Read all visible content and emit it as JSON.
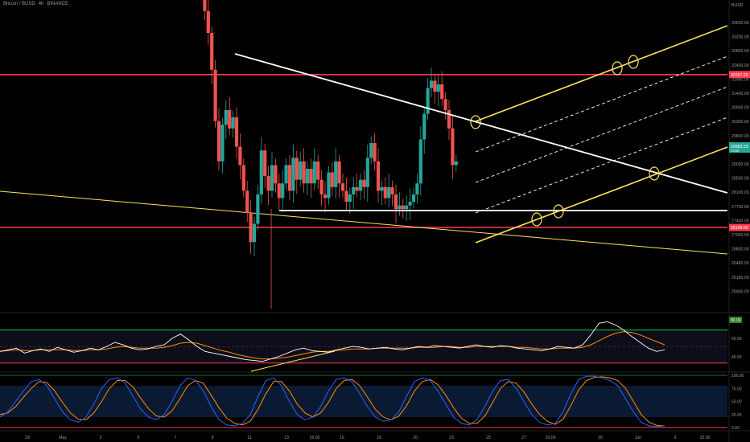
{
  "header": {
    "symbol": "Bitcoin / BUSD",
    "interval": "4h",
    "exchange": "BINANCE",
    "currency": "BUSD"
  },
  "colors": {
    "background": "#000000",
    "candle_up": "#26a69a",
    "candle_down": "#ef5350",
    "resistance": "#ff3b4e",
    "channel": "#ffe45c",
    "trendline": "#ffffff",
    "rsi_line": "#ffffff",
    "rsi_ma": "#ff8c00",
    "stoch_k": "#2962ff",
    "stoch_d": "#ff8c00"
  },
  "chart_data": [
    {
      "type": "candlestick",
      "pane": "price",
      "y_ticks": [
        "33600.00",
        "33200.00",
        "32800.00",
        "32400.00",
        "31900.00",
        "31400.00",
        "30900.00",
        "30300.00",
        "29800.00",
        "29400.00",
        "29000.00",
        "28500.00",
        "28100.00",
        "27700.00",
        "27400.00",
        "27000.00",
        "26800.00",
        "26480.00",
        "26180.00",
        "25900.00"
      ],
      "x_ticks": [
        "29",
        "May",
        "3",
        "5",
        "7",
        "9",
        "11",
        "13",
        "15:00",
        "16",
        "18",
        "20",
        "23",
        "25",
        "27",
        "15:00",
        "30",
        "Jun",
        "3",
        "15:00"
      ],
      "ylim": [
        25800,
        34300
      ],
      "price_label": "29983.23",
      "price_sublabel": "10:56",
      "horizontal_levels": [
        {
          "label": "32267.29",
          "value": 32267.29
        },
        {
          "label": "28100.00",
          "value": 28100.0
        }
      ],
      "white_support_level": 28560,
      "ohlc_path": [
        [
          0,
          34400
        ],
        [
          6,
          34000
        ],
        [
          8,
          33400
        ],
        [
          10,
          32400
        ],
        [
          12,
          31000
        ],
        [
          14,
          29900
        ],
        [
          16,
          30900
        ],
        [
          18,
          31300
        ],
        [
          20,
          30800
        ],
        [
          22,
          31100
        ],
        [
          24,
          30300
        ],
        [
          26,
          29800
        ],
        [
          28,
          29100
        ],
        [
          30,
          28500
        ],
        [
          32,
          27700
        ],
        [
          34,
          28200
        ],
        [
          36,
          29000
        ],
        [
          38,
          30200
        ],
        [
          40,
          29500
        ],
        [
          42,
          29100
        ],
        [
          44,
          29800
        ],
        [
          46,
          29300
        ],
        [
          48,
          28900
        ],
        [
          50,
          29300
        ],
        [
          52,
          29800
        ],
        [
          54,
          29100
        ],
        [
          56,
          30000
        ],
        [
          58,
          29400
        ],
        [
          60,
          29900
        ],
        [
          62,
          29300
        ],
        [
          64,
          29700
        ],
        [
          66,
          29300
        ],
        [
          68,
          29900
        ],
        [
          70,
          29400
        ],
        [
          72,
          29000
        ],
        [
          74,
          28900
        ],
        [
          76,
          29600
        ],
        [
          78,
          29200
        ],
        [
          80,
          29900
        ],
        [
          82,
          29300
        ],
        [
          84,
          29100
        ],
        [
          86,
          28800
        ],
        [
          88,
          29000
        ],
        [
          90,
          29200
        ],
        [
          92,
          29100
        ],
        [
          94,
          29400
        ],
        [
          96,
          29200
        ],
        [
          98,
          30000
        ],
        [
          100,
          30400
        ],
        [
          102,
          29900
        ],
        [
          104,
          29100
        ],
        [
          106,
          29200
        ],
        [
          108,
          28900
        ],
        [
          110,
          29200
        ],
        [
          112,
          29000
        ],
        [
          114,
          28600
        ],
        [
          116,
          28700
        ],
        [
          118,
          28600
        ],
        [
          120,
          28700
        ],
        [
          122,
          28800
        ],
        [
          124,
          29000
        ],
        [
          126,
          29300
        ],
        [
          128,
          30500
        ],
        [
          130,
          31200
        ],
        [
          132,
          31900
        ],
        [
          134,
          32100
        ],
        [
          136,
          31800
        ],
        [
          138,
          32000
        ],
        [
          140,
          31600
        ],
        [
          142,
          31300
        ],
        [
          144,
          30800
        ],
        [
          146,
          29800
        ],
        [
          148,
          29900
        ]
      ],
      "ohlc_path_units": "x = bar index (0-149), y = price in BUSD"
    },
    {
      "type": "line",
      "pane": "rsi",
      "y_ticks": [
        "80.00",
        "60.00",
        "40.00"
      ],
      "ylim": [
        20,
        90
      ],
      "band_upper": 70,
      "band_lower": 30,
      "series": [
        {
          "values": [
            44,
            46,
            48,
            42,
            45,
            47,
            44,
            49,
            46,
            43,
            45,
            48,
            46,
            50,
            55,
            52,
            48,
            46,
            47,
            50,
            52,
            60,
            65,
            58,
            50,
            44,
            42,
            40,
            38,
            36,
            34,
            33,
            32,
            35,
            38,
            42,
            46,
            48,
            45,
            44,
            43,
            46,
            48,
            50,
            49,
            47,
            48,
            49,
            47,
            46,
            48,
            50,
            49,
            51,
            50,
            49,
            48,
            50,
            52,
            50,
            49,
            51,
            50,
            48,
            47,
            46,
            45,
            47,
            50,
            49,
            48,
            52,
            64,
            78,
            80,
            76,
            70,
            62,
            55,
            48,
            44,
            46
          ]
        },
        {
          "values": [
            44,
            45,
            46,
            45,
            45,
            46,
            46,
            46,
            46,
            45,
            45,
            46,
            46,
            47,
            49,
            50,
            49,
            48,
            48,
            48,
            49,
            51,
            54,
            55,
            54,
            51,
            48,
            45,
            43,
            40,
            38,
            36,
            35,
            35,
            36,
            37,
            39,
            41,
            43,
            44,
            44,
            45,
            46,
            47,
            47,
            47,
            48,
            48,
            48,
            48,
            48,
            49,
            49,
            49,
            50,
            50,
            49,
            49,
            50,
            50,
            50,
            50,
            50,
            49,
            49,
            48,
            47,
            47,
            48,
            48,
            48,
            49,
            52,
            57,
            62,
            66,
            68,
            67,
            64,
            60,
            56,
            52
          ]
        }
      ]
    },
    {
      "type": "line",
      "pane": "stochastic",
      "y_ticks": [
        "100.00",
        "75.00",
        "50.00",
        "25.00",
        "0.00"
      ],
      "ylim": [
        0,
        100
      ],
      "series": [
        {
          "values": [
            20,
            30,
            50,
            70,
            88,
            92,
            80,
            55,
            30,
            15,
            10,
            20,
            45,
            75,
            92,
            95,
            85,
            60,
            35,
            20,
            15,
            25,
            50,
            80,
            95,
            90,
            70,
            40,
            15,
            5,
            3,
            8,
            25,
            60,
            90,
            95,
            80,
            50,
            25,
            15,
            20,
            40,
            70,
            92,
            95,
            88,
            65,
            40,
            20,
            12,
            15,
            30,
            60,
            88,
            95,
            90,
            70,
            45,
            20,
            8,
            5,
            15,
            40,
            70,
            90,
            92,
            75,
            50,
            25,
            10,
            5,
            8,
            30,
            65,
            92,
            98,
            98,
            95,
            90,
            80,
            55,
            30,
            10,
            3,
            2,
            3
          ]
        },
        {
          "values": [
            25,
            28,
            40,
            58,
            75,
            88,
            86,
            70,
            48,
            28,
            16,
            15,
            28,
            50,
            75,
            90,
            90,
            78,
            56,
            36,
            22,
            20,
            32,
            55,
            80,
            90,
            85,
            62,
            38,
            18,
            8,
            5,
            12,
            35,
            65,
            88,
            88,
            70,
            45,
            28,
            20,
            28,
            48,
            75,
            90,
            92,
            80,
            58,
            35,
            20,
            15,
            22,
            42,
            70,
            88,
            92,
            82,
            62,
            38,
            18,
            8,
            8,
            22,
            48,
            75,
            88,
            85,
            68,
            45,
            25,
            12,
            6,
            16,
            42,
            72,
            90,
            96,
            97,
            95,
            90,
            75,
            50,
            25,
            10,
            4,
            3
          ]
        }
      ]
    }
  ]
}
